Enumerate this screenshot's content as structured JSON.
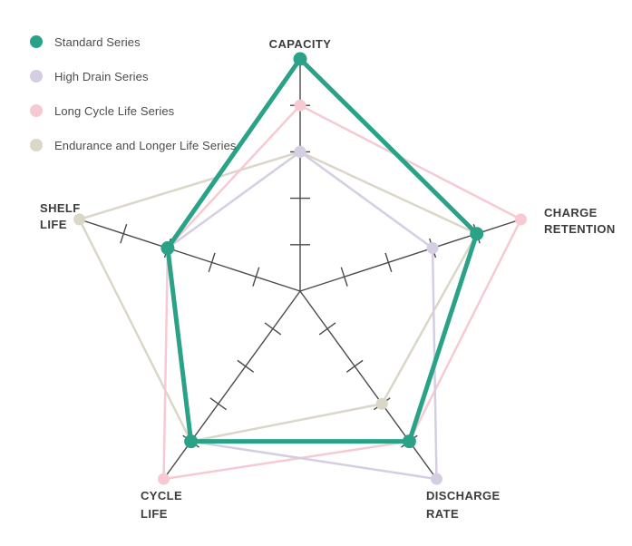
{
  "legend": {
    "items": [
      {
        "label": "Standard Series"
      },
      {
        "label": "High Drain Series"
      },
      {
        "label": "Long Cycle Life Series"
      },
      {
        "label": "Endurance and Longer Life Series"
      }
    ]
  },
  "labels": {
    "capacity": [
      "CAPACITY"
    ],
    "charge_retention": [
      "CHARGE",
      "RETENTION"
    ],
    "discharge_rate": [
      "DISCHARGE",
      "RATE"
    ],
    "cycle_life": [
      "CYCLE",
      "LIFE"
    ],
    "shelf_life": [
      "SHELF",
      "LIFE"
    ]
  },
  "chart_data": {
    "type": "radar",
    "categories": [
      "CAPACITY",
      "CHARGE RETENTION",
      "DISCHARGE RATE",
      "CYCLE LIFE",
      "SHELF LIFE"
    ],
    "scale": {
      "min": 0,
      "max": 5,
      "tick_values": [
        1,
        2,
        3,
        4
      ]
    },
    "axis_color": "#4a4a4a",
    "grid": false,
    "legend_position": "top-left",
    "series": [
      {
        "name": "Standard Series",
        "color": "#2aa287",
        "values": [
          5,
          4,
          4,
          4,
          3
        ],
        "line_width": 5,
        "dot_radius": 7.5
      },
      {
        "name": "High Drain Series",
        "color": "#d5cee2",
        "values": [
          3,
          3,
          5,
          4,
          3
        ],
        "line_width": 2.5,
        "dot_radius": 6.5
      },
      {
        "name": "Long Cycle Life Series",
        "color": "#f7cad3",
        "values": [
          4,
          5,
          4,
          5,
          3
        ],
        "line_width": 2.5,
        "dot_radius": 6.5
      },
      {
        "name": "Endurance and Longer Life Series",
        "color": "#dad6c8",
        "values": [
          3,
          4,
          3,
          4,
          5
        ],
        "line_width": 2.5,
        "dot_radius": 6.5
      }
    ]
  }
}
